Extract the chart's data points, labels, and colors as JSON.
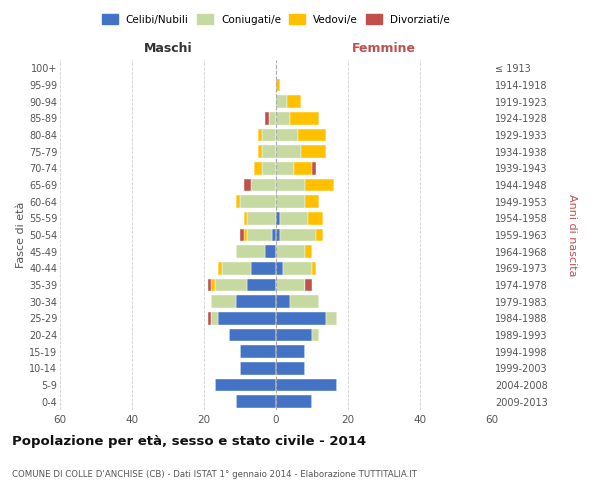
{
  "age_groups": [
    "0-4",
    "5-9",
    "10-14",
    "15-19",
    "20-24",
    "25-29",
    "30-34",
    "35-39",
    "40-44",
    "45-49",
    "50-54",
    "55-59",
    "60-64",
    "65-69",
    "70-74",
    "75-79",
    "80-84",
    "85-89",
    "90-94",
    "95-99",
    "100+"
  ],
  "birth_years": [
    "2009-2013",
    "2004-2008",
    "1999-2003",
    "1994-1998",
    "1989-1993",
    "1984-1988",
    "1979-1983",
    "1974-1978",
    "1969-1973",
    "1964-1968",
    "1959-1963",
    "1954-1958",
    "1949-1953",
    "1944-1948",
    "1939-1943",
    "1934-1938",
    "1929-1933",
    "1924-1928",
    "1919-1923",
    "1914-1918",
    "≤ 1913"
  ],
  "maschi": {
    "celibi": [
      11,
      17,
      10,
      10,
      13,
      16,
      11,
      8,
      7,
      3,
      1,
      0,
      0,
      0,
      0,
      0,
      0,
      0,
      0,
      0,
      0
    ],
    "coniugati": [
      0,
      0,
      0,
      0,
      0,
      2,
      7,
      9,
      8,
      8,
      7,
      8,
      10,
      7,
      4,
      4,
      4,
      2,
      0,
      0,
      0
    ],
    "vedovi": [
      0,
      0,
      0,
      0,
      0,
      0,
      0,
      1,
      1,
      0,
      1,
      1,
      1,
      0,
      2,
      1,
      1,
      0,
      0,
      0,
      0
    ],
    "divorziati": [
      0,
      0,
      0,
      0,
      0,
      1,
      0,
      1,
      0,
      0,
      1,
      0,
      0,
      2,
      0,
      0,
      0,
      1,
      0,
      0,
      0
    ]
  },
  "femmine": {
    "nubili": [
      10,
      17,
      8,
      8,
      10,
      14,
      4,
      0,
      2,
      0,
      1,
      1,
      0,
      0,
      0,
      0,
      0,
      0,
      0,
      0,
      0
    ],
    "coniugate": [
      0,
      0,
      0,
      0,
      2,
      3,
      8,
      8,
      8,
      8,
      10,
      8,
      8,
      8,
      5,
      7,
      6,
      4,
      3,
      0,
      0
    ],
    "vedove": [
      0,
      0,
      0,
      0,
      0,
      0,
      0,
      0,
      1,
      2,
      2,
      4,
      4,
      8,
      5,
      7,
      8,
      8,
      4,
      1,
      0
    ],
    "divorziate": [
      0,
      0,
      0,
      0,
      0,
      0,
      0,
      2,
      0,
      0,
      0,
      0,
      0,
      0,
      1,
      0,
      0,
      0,
      0,
      0,
      0
    ]
  },
  "colors": {
    "celibi_nubili": "#4472c4",
    "coniugati": "#c5d9a0",
    "vedovi": "#ffc000",
    "divorziati": "#c0504d"
  },
  "title": "Popolazione per età, sesso e stato civile - 2014",
  "subtitle": "COMUNE DI COLLE D'ANCHISE (CB) - Dati ISTAT 1° gennaio 2014 - Elaborazione TUTTITALIA.IT",
  "xlabel_left": "Maschi",
  "xlabel_right": "Femmine",
  "ylabel_left": "Fasce di età",
  "ylabel_right": "Anni di nascita",
  "xlim": 60,
  "legend_labels": [
    "Celibi/Nubili",
    "Coniugati/e",
    "Vedovi/e",
    "Divorziati/e"
  ],
  "background_color": "#ffffff",
  "grid_color": "#cccccc"
}
